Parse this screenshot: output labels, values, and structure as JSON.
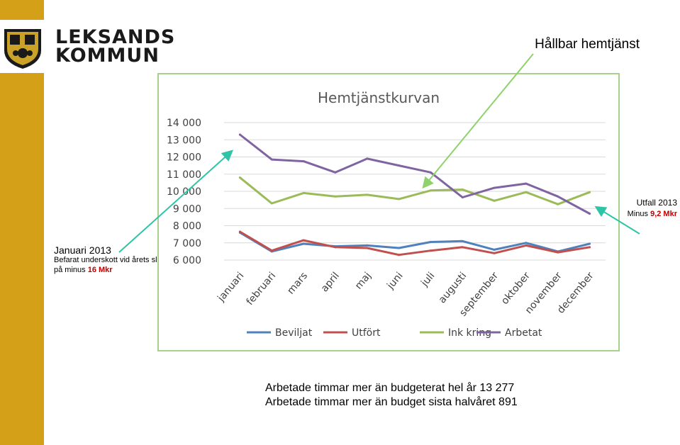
{
  "logo": {
    "line1": "LEKSANDS",
    "line2": "KOMMUN",
    "emblem": "coat-of-arms-icon"
  },
  "headline": "Hållbar hemtjänst",
  "note_left": {
    "title": "Januari 2013",
    "line1": "Befarat underskott vid årets slut",
    "line2_prefix": "på minus ",
    "line2_value": "16 Mkr"
  },
  "note_right": {
    "title": "Utfall 2013",
    "line_prefix": "Minus ",
    "line_value": "9,2 Mkr"
  },
  "bottom": {
    "line1": "Arbetade timmar mer än budgeterat hel år 13 277",
    "line2": "Arbetade timmar mer än budget sista halvåret 891"
  },
  "colors": {
    "accent_bar": "#d4a017",
    "frame": "#a9d18e",
    "arrow": "#2ec4a5",
    "arrow2": "#8fd16a"
  },
  "chart_data": {
    "type": "line",
    "title": "Hemtjänstkurvan",
    "categories": [
      "januari",
      "februari",
      "mars",
      "april",
      "maj",
      "juni",
      "juli",
      "augusti",
      "september",
      "oktober",
      "november",
      "december"
    ],
    "ylim": [
      6000,
      14000
    ],
    "yticks": [
      6000,
      7000,
      8000,
      9000,
      10000,
      11000,
      12000,
      13000,
      14000
    ],
    "ytick_labels": [
      "6 000",
      "7 000",
      "8 000",
      "9 000",
      "10 000",
      "11 000",
      "12 000",
      "13 000",
      "14 000"
    ],
    "grid": true,
    "legend_position": "bottom",
    "series": [
      {
        "name": "Beviljat",
        "color": "#4f81bd",
        "values": [
          7600,
          6500,
          6950,
          6800,
          6850,
          6700,
          7050,
          7100,
          6600,
          7000,
          6500,
          6950
        ]
      },
      {
        "name": "Utfört",
        "color": "#c0504d",
        "values": [
          7650,
          6550,
          7150,
          6750,
          6700,
          6300,
          6550,
          6750,
          6400,
          6850,
          6450,
          6750
        ]
      },
      {
        "name": "Ink kring",
        "color": "#9bbb59",
        "values": [
          10800,
          9300,
          9900,
          9700,
          9800,
          9550,
          10050,
          10100,
          9450,
          9950,
          9250,
          9950
        ]
      },
      {
        "name": "Arbetat",
        "color": "#8064a2",
        "values": [
          13300,
          11850,
          11750,
          11100,
          11900,
          11500,
          11100,
          9650,
          10200,
          10450,
          9700,
          8700
        ]
      }
    ]
  }
}
